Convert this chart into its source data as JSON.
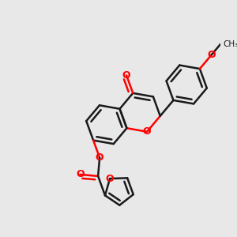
{
  "background_color": "#e8e8e8",
  "bond_color": "#1a1a1a",
  "oxygen_color": "#ff0000",
  "bond_width": 1.8,
  "figsize": [
    3.0,
    3.0
  ],
  "dpi": 100,
  "xlim": [
    0,
    300
  ],
  "ylim": [
    0,
    300
  ]
}
